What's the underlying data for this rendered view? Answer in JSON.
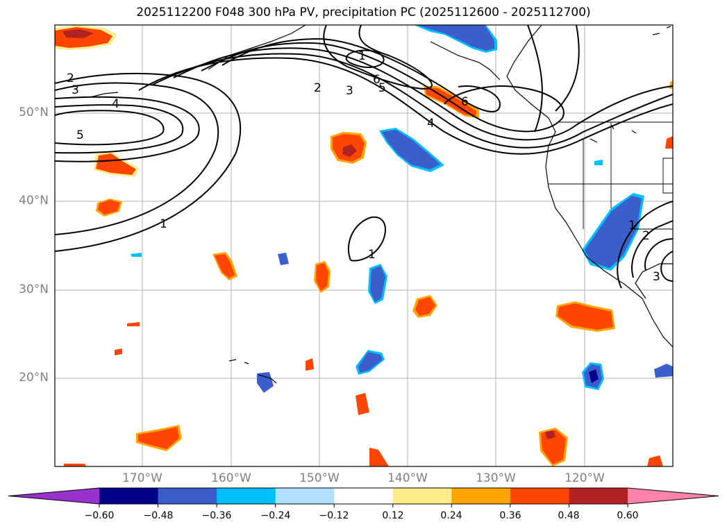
{
  "title": "2025112200 F048 300 hPa PV, precipitation PC (2025112600 - 2025112700)",
  "lat_labels": [
    "50°N",
    "40°N",
    "30°N",
    "20°N"
  ],
  "lon_labels": [
    "170°W",
    "160°W",
    "150°W",
    "140°W",
    "130°W",
    "120°W"
  ],
  "contour_labels": [
    "2",
    "3",
    "4",
    "5",
    "1",
    "1",
    "2",
    "3",
    "4",
    "5",
    "6",
    "6",
    "1",
    "1",
    "2",
    "3"
  ],
  "colorbar": {
    "tick_labels": [
      "−0.60",
      "−0.48",
      "−0.36",
      "−0.24",
      "−0.12",
      "0.12",
      "0.24",
      "0.36",
      "0.48",
      "0.60"
    ],
    "colors": [
      "#9932cc",
      "#00008b",
      "#3a5fcd",
      "#00bfff",
      "#b0e2ff",
      "#ffffff",
      "#ffec8b",
      "#ffa500",
      "#ff4500",
      "#b22222",
      "#ff82ab"
    ]
  },
  "colors": {
    "neg_strong": "#3a5fcd",
    "neg_light": "#00bfff",
    "neg_dark": "#00008b",
    "pos_strong": "#ff4500",
    "pos_light": "#ffa500",
    "pos_dark": "#b22222",
    "pos_edge": "#ffec8b"
  }
}
